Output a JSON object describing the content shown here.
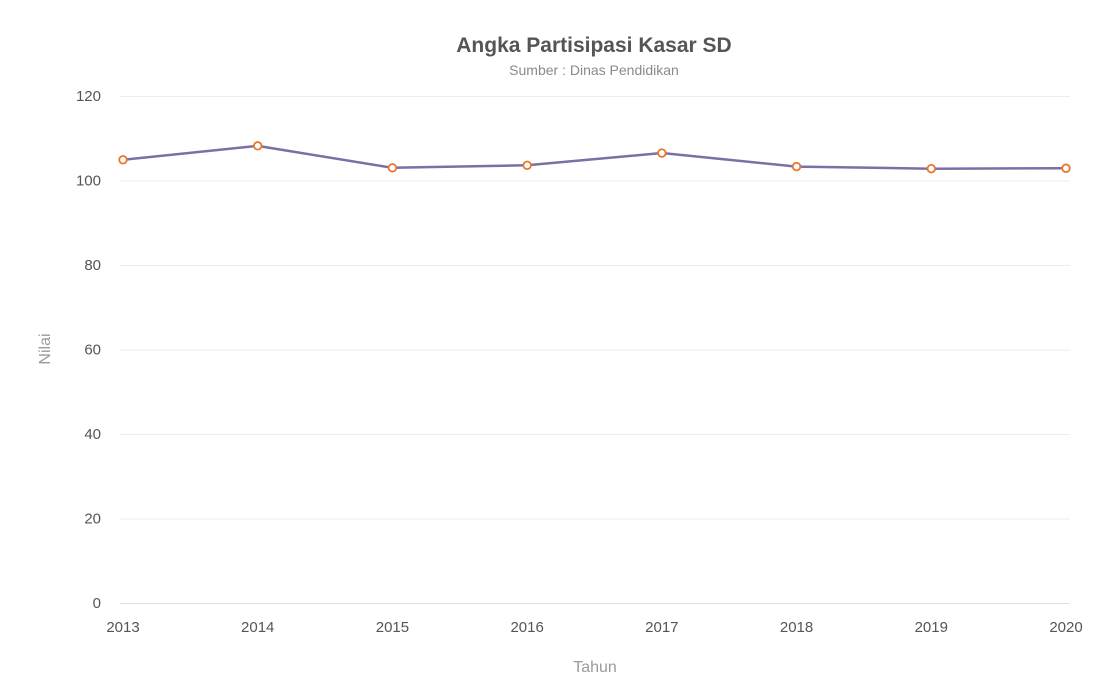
{
  "colors": {
    "line": "#7b6fa6",
    "marker": "#e9762b"
  },
  "chart_data": {
    "type": "line",
    "title": "Angka Partisipasi Kasar SD",
    "subtitle": "Sumber : Dinas Pendidikan",
    "xlabel": "Tahun",
    "ylabel": "Nilai",
    "categories": [
      "2013",
      "2014",
      "2015",
      "2016",
      "2017",
      "2018",
      "2019",
      "2020"
    ],
    "series": [
      {
        "values": [
          104.9,
          108.2,
          103.0,
          103.6,
          106.5,
          103.3,
          102.8,
          102.9
        ]
      }
    ],
    "ylim": [
      0,
      120
    ],
    "yticks": [
      "0",
      "20",
      "40",
      "60",
      "80",
      "100",
      "120"
    ],
    "grid": true,
    "legend": "none"
  }
}
